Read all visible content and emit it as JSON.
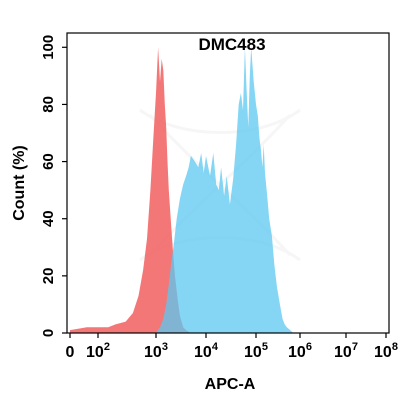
{
  "chart_data": {
    "type": "area",
    "title": "DMC483",
    "xlabel": "APC-A",
    "ylabel": "Count  (%)",
    "x_scale": "biexponential",
    "xlim": [
      0,
      100000000
    ],
    "ylim": [
      0,
      105
    ],
    "x_ticks": [
      {
        "value": 0,
        "label": "0"
      },
      {
        "value": 100,
        "label": "10",
        "exp": "2"
      },
      {
        "value": 1000,
        "label": "10",
        "exp": "3"
      },
      {
        "value": 10000,
        "label": "10",
        "exp": "4"
      },
      {
        "value": 100000,
        "label": "10",
        "exp": "5"
      },
      {
        "value": 1000000,
        "label": "10",
        "exp": "6"
      },
      {
        "value": 10000000,
        "label": "10",
        "exp": "7"
      },
      {
        "value": 100000000,
        "label": "10",
        "exp": "8"
      }
    ],
    "y_ticks": [
      0,
      20,
      40,
      60,
      80,
      100
    ],
    "grid": false,
    "legend": "none",
    "series": [
      {
        "color": "#f25f5f",
        "x": [
          0,
          60,
          100,
          150,
          200,
          300,
          400,
          500,
          600,
          700,
          800,
          900,
          1000,
          1100,
          1200,
          1300,
          1400,
          1500,
          1600,
          1700,
          1800,
          2000,
          2200,
          2400,
          2700,
          3000,
          3500,
          4000,
          5000
        ],
        "y": [
          1,
          2,
          2,
          2,
          3,
          4,
          7,
          13,
          22,
          33,
          50,
          68,
          84,
          100,
          88,
          96,
          92,
          80,
          72,
          60,
          50,
          38,
          28,
          20,
          12,
          6,
          2,
          1,
          0
        ]
      },
      {
        "color": "#5bc8f0",
        "x": [
          1000,
          1200,
          1400,
          1600,
          1800,
          2000,
          2300,
          2600,
          3000,
          3500,
          4000,
          4500,
          5000,
          6000,
          7000,
          8000,
          9000,
          10000,
          12000,
          14000,
          16000,
          18000,
          20000,
          23000,
          26000,
          30000,
          35000,
          40000,
          45000,
          50000,
          55000,
          60000,
          65000,
          70000,
          75000,
          80000,
          90000,
          100000,
          110000,
          120000,
          130000,
          140000,
          150000,
          160000,
          180000,
          200000,
          230000,
          260000,
          300000,
          350000,
          400000,
          450000,
          500000,
          600000,
          700000
        ],
        "y": [
          0,
          2,
          5,
          10,
          17,
          24,
          32,
          40,
          47,
          52,
          55,
          58,
          62,
          60,
          58,
          63,
          56,
          62,
          55,
          63,
          52,
          50,
          58,
          48,
          55,
          45,
          54,
          66,
          80,
          84,
          78,
          100,
          85,
          72,
          90,
          100,
          88,
          80,
          76,
          68,
          64,
          58,
          66,
          56,
          48,
          40,
          34,
          24,
          16,
          10,
          5,
          3,
          2,
          1,
          0
        ]
      }
    ],
    "annotations": []
  }
}
